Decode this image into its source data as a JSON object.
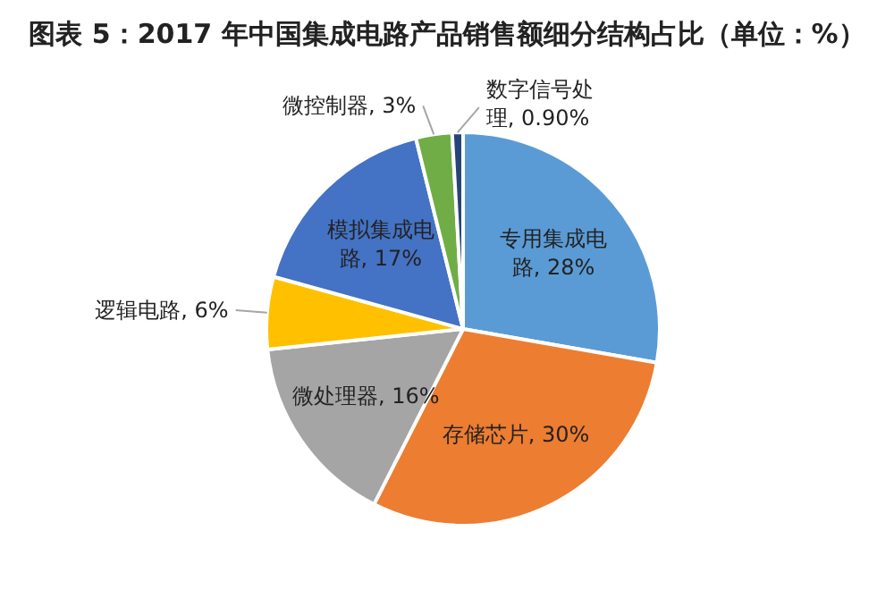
{
  "chart_data": {
    "type": "pie",
    "title": "图表 5：2017 年中国集成电路产品销售额细分结构占比（单位：%）",
    "categories": [
      "专用集成电路",
      "存储芯片",
      "微处理器",
      "逻辑电路",
      "模拟集成电路",
      "微控制器",
      "数字信号处理"
    ],
    "values": [
      28,
      30,
      16,
      6,
      17,
      3,
      0.9
    ],
    "value_labels": [
      "28%",
      "30%",
      "16%",
      "6%",
      "17%",
      "3%",
      "0.90%"
    ],
    "colors": [
      "#5b9bd5",
      "#ed7d31",
      "#a5a5a5",
      "#ffc000",
      "#4472c4",
      "#70ad47",
      "#264478"
    ]
  }
}
